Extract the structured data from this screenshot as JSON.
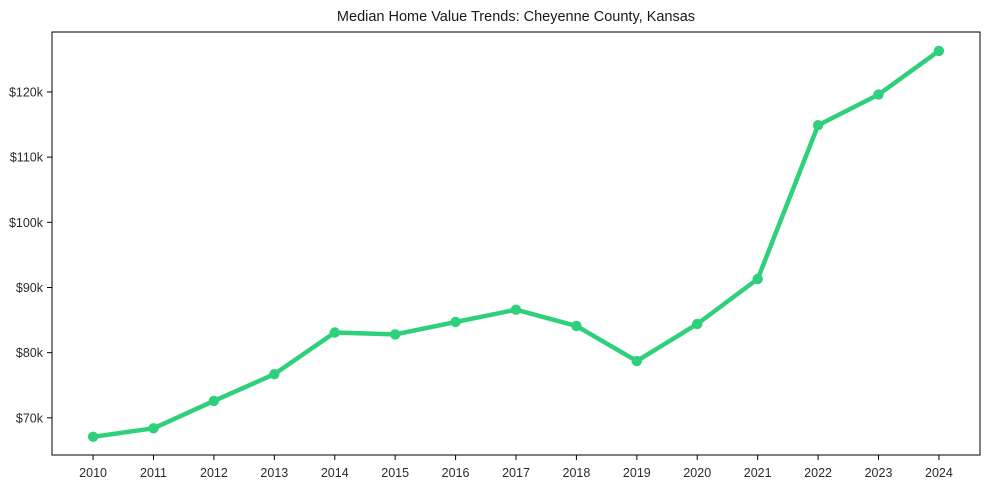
{
  "chart_data": {
    "type": "line",
    "title": "Median Home Value Trends: Cheyenne County, Kansas",
    "xlabel": "",
    "ylabel": "",
    "x": [
      2010,
      2011,
      2012,
      2013,
      2014,
      2015,
      2016,
      2017,
      2018,
      2019,
      2020,
      2021,
      2022,
      2023,
      2024
    ],
    "series": [
      {
        "name": "Median Home Value",
        "values": [
          67100,
          68400,
          72600,
          76700,
          83100,
          82800,
          84700,
          86600,
          84100,
          78700,
          84400,
          91300,
          114900,
          119600,
          126300
        ]
      }
    ],
    "x_tick_labels": [
      "2010",
      "2011",
      "2012",
      "2013",
      "2014",
      "2015",
      "2016",
      "2017",
      "2018",
      "2019",
      "2020",
      "2021",
      "2022",
      "2023",
      "2024"
    ],
    "y_ticks": [
      {
        "value": 70000,
        "label": "$70k"
      },
      {
        "value": 80000,
        "label": "$80k"
      },
      {
        "value": 90000,
        "label": "$90k"
      },
      {
        "value": 100000,
        "label": "$100k"
      },
      {
        "value": 110000,
        "label": "$110k"
      },
      {
        "value": 120000,
        "label": "$120k"
      }
    ],
    "xlim": [
      2009.32,
      2024.68
    ],
    "ylim": [
      64300,
      129200
    ],
    "grid": false,
    "legend_position": "none",
    "line_color": "#2fd07c",
    "marker": "circle",
    "spine_color": "#000000",
    "text_color": "#2b2b2b",
    "background_color": "#ffffff"
  }
}
